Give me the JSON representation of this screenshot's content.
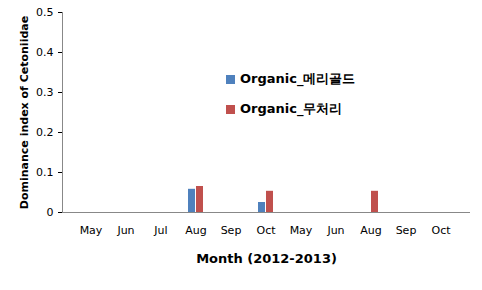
{
  "chart_data": {
    "type": "bar",
    "categories": [
      "May",
      "Jun",
      "Jul",
      "Aug",
      "Sep",
      "Oct",
      "May",
      "Jun",
      "Aug",
      "Sep",
      "Oct"
    ],
    "series": [
      {
        "name": "Organic_메리골드",
        "color": "#4f81bd",
        "values": [
          0,
          0,
          0,
          0.058,
          0,
          0.025,
          0,
          0,
          0,
          0,
          0
        ]
      },
      {
        "name": "Organic_무처리",
        "color": "#c0504d",
        "values": [
          0,
          0,
          0,
          0.065,
          0,
          0.053,
          0,
          0,
          0.053,
          0,
          0
        ]
      }
    ],
    "x_label": "Month (2012-2013)",
    "y_label": "Dominance index of Cetoniidae",
    "ylim": [
      0,
      0.5
    ],
    "yticks": [
      0,
      0.1,
      0.2,
      0.3,
      0.4,
      0.5
    ],
    "legend": "top"
  }
}
